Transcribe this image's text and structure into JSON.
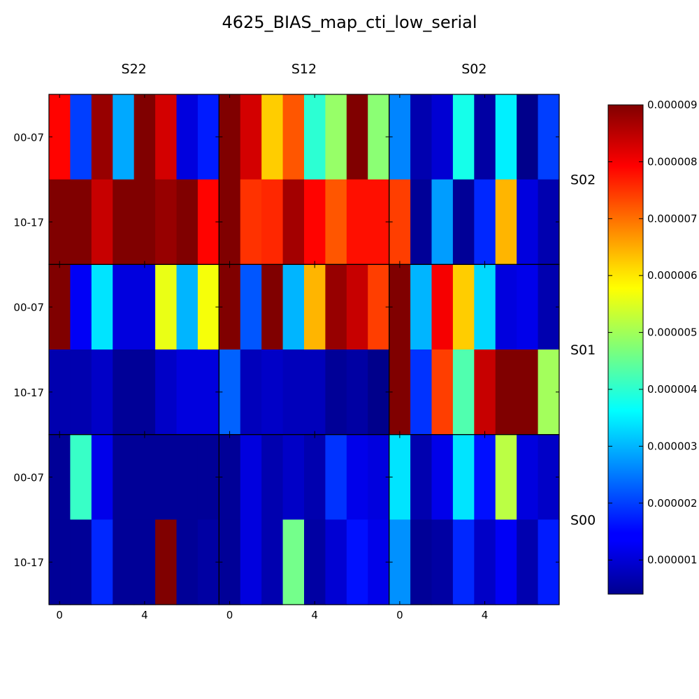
{
  "chart_data": {
    "type": "heatmap",
    "title": "4625_BIAS_map_cti_low_serial",
    "colormap": "jet",
    "vmin": 4e-07,
    "vmax": 9e-06,
    "column_labels": [
      "S22",
      "S12",
      "S02"
    ],
    "row_labels": [
      "S02",
      "S01",
      "S00"
    ],
    "y_tick_labels": [
      "00-07",
      "10-17"
    ],
    "x_tick_labels": [
      "0",
      "4"
    ],
    "x_tick_values": [
      0,
      4
    ],
    "colorbar_tick_labels": [
      "0.000001",
      "0.000002",
      "0.000003",
      "0.000004",
      "0.000005",
      "0.000006",
      "0.000007",
      "0.000008",
      "0.000009"
    ],
    "colorbar_tick_values": [
      1e-06,
      2e-06,
      3e-06,
      4e-06,
      5e-06,
      6e-06,
      7e-06,
      8e-06,
      9e-06
    ],
    "panels": [
      [
        [
          [
            7.9,
            2.0,
            8.8,
            2.9,
            9.0,
            8.3,
            1.2,
            1.7
          ],
          [
            9.0,
            9.0,
            8.4,
            9.0,
            9.0,
            8.8,
            9.0,
            7.9
          ]
        ],
        [
          [
            9.0,
            8.3,
            6.2,
            7.2,
            4.0,
            4.9,
            9.0,
            4.8
          ],
          [
            9.0,
            7.5,
            7.6,
            8.7,
            7.9,
            7.2,
            7.8,
            7.8
          ]
        ],
        [
          [
            2.6,
            0.8,
            1.1,
            3.8,
            0.7,
            3.5,
            0.5,
            2.0
          ],
          [
            7.4,
            0.6,
            2.8,
            0.6,
            1.8,
            6.4,
            1.2,
            0.8
          ]
        ]
      ],
      [
        [
          [
            9.0,
            1.4,
            3.4,
            1.2,
            1.2,
            5.6,
            3.0,
            5.7
          ],
          [
            0.8,
            0.8,
            1.0,
            0.6,
            0.6,
            1.0,
            1.2,
            1.2
          ]
        ],
        [
          [
            9.0,
            2.2,
            9.0,
            3.0,
            6.4,
            8.8,
            8.4,
            7.4
          ],
          [
            2.3,
            0.9,
            1.0,
            0.9,
            0.9,
            0.6,
            0.7,
            0.5
          ]
        ],
        [
          [
            9.0,
            3.0,
            8.0,
            6.2,
            3.3,
            1.2,
            1.3,
            0.8
          ],
          [
            9.0,
            1.9,
            7.4,
            4.3,
            8.4,
            9.0,
            9.0,
            5.0
          ]
        ]
      ],
      [
        [
          [
            0.6,
            4.1,
            1.3,
            0.6,
            0.6,
            0.6,
            0.6,
            0.6
          ],
          [
            0.6,
            0.6,
            1.8,
            0.6,
            0.6,
            9.0,
            0.6,
            0.7
          ]
        ],
        [
          [
            0.6,
            1.2,
            0.8,
            1.0,
            0.8,
            1.9,
            1.3,
            1.2
          ],
          [
            0.6,
            1.2,
            0.8,
            4.6,
            0.7,
            1.1,
            1.6,
            1.3
          ]
        ],
        [
          [
            3.4,
            0.8,
            1.3,
            3.4,
            1.6,
            5.2,
            1.2,
            1.0
          ],
          [
            2.7,
            0.6,
            0.7,
            1.8,
            1.0,
            1.4,
            0.8,
            1.7
          ]
        ]
      ]
    ]
  }
}
